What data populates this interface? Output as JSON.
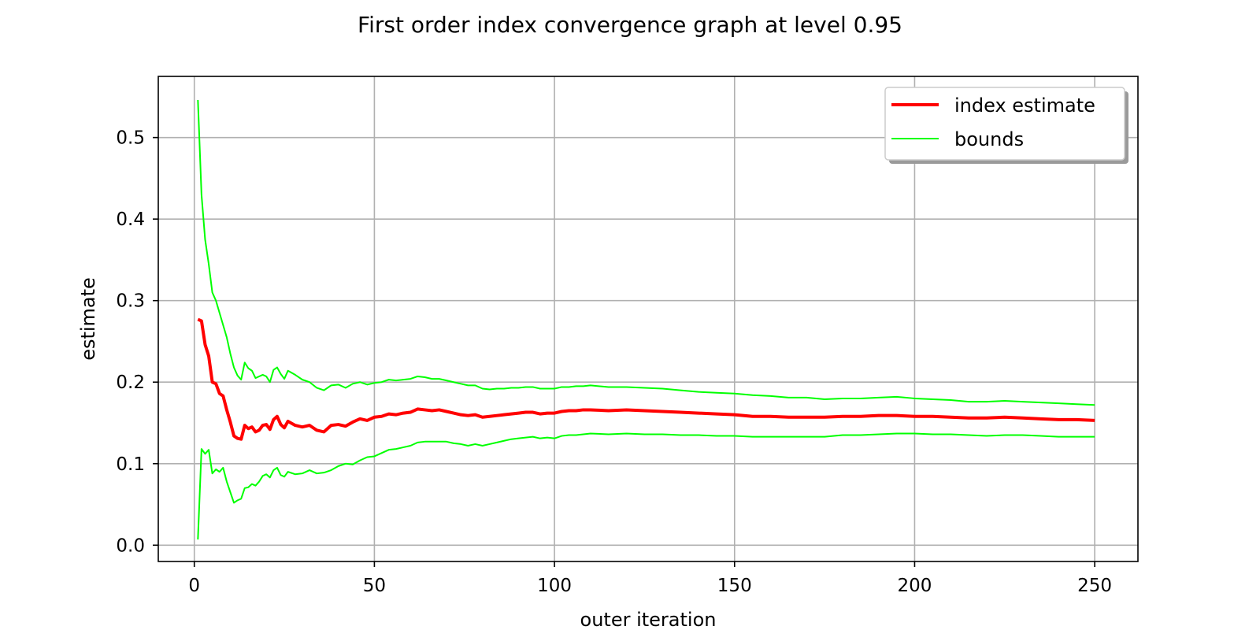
{
  "chart_data": {
    "type": "line",
    "title": "First order index convergence graph at level 0.95",
    "xlabel": "outer iteration",
    "ylabel": "estimate",
    "xlim": [
      -10,
      262
    ],
    "ylim": [
      -0.02,
      0.575
    ],
    "xticks": [
      0,
      50,
      100,
      150,
      200,
      250
    ],
    "yticks": [
      0.0,
      0.1,
      0.2,
      0.3,
      0.4,
      0.5
    ],
    "xtick_labels": [
      "0",
      "50",
      "100",
      "150",
      "200",
      "250"
    ],
    "ytick_labels": [
      "0.0",
      "0.1",
      "0.2",
      "0.3",
      "0.4",
      "0.5"
    ],
    "grid": true,
    "legend_position": "top-right",
    "legend": [
      "index estimate",
      "bounds"
    ],
    "series": [
      {
        "name": "index estimate",
        "color": "#ff0000",
        "x": [
          1,
          2,
          3,
          4,
          5,
          6,
          7,
          8,
          9,
          10,
          11,
          12,
          13,
          14,
          15,
          16,
          17,
          18,
          19,
          20,
          21,
          22,
          23,
          24,
          25,
          26,
          28,
          30,
          32,
          34,
          36,
          38,
          40,
          42,
          44,
          46,
          48,
          50,
          52,
          54,
          56,
          58,
          60,
          62,
          64,
          66,
          68,
          70,
          72,
          74,
          76,
          78,
          80,
          82,
          84,
          86,
          88,
          90,
          92,
          94,
          96,
          98,
          100,
          102,
          104,
          106,
          108,
          110,
          115,
          120,
          125,
          130,
          135,
          140,
          145,
          150,
          155,
          160,
          165,
          170,
          175,
          180,
          185,
          190,
          195,
          200,
          205,
          210,
          215,
          220,
          225,
          230,
          235,
          240,
          245,
          250
        ],
        "y": [
          0.277,
          0.275,
          0.246,
          0.232,
          0.2,
          0.198,
          0.186,
          0.183,
          0.166,
          0.151,
          0.134,
          0.131,
          0.13,
          0.147,
          0.143,
          0.145,
          0.139,
          0.141,
          0.147,
          0.148,
          0.142,
          0.154,
          0.158,
          0.148,
          0.144,
          0.152,
          0.147,
          0.145,
          0.147,
          0.141,
          0.139,
          0.147,
          0.148,
          0.146,
          0.151,
          0.155,
          0.153,
          0.157,
          0.158,
          0.161,
          0.16,
          0.162,
          0.163,
          0.167,
          0.166,
          0.165,
          0.166,
          0.164,
          0.162,
          0.16,
          0.159,
          0.16,
          0.157,
          0.158,
          0.159,
          0.16,
          0.161,
          0.162,
          0.163,
          0.163,
          0.161,
          0.162,
          0.162,
          0.164,
          0.165,
          0.165,
          0.166,
          0.166,
          0.165,
          0.166,
          0.165,
          0.164,
          0.163,
          0.162,
          0.161,
          0.16,
          0.158,
          0.158,
          0.157,
          0.157,
          0.157,
          0.158,
          0.158,
          0.159,
          0.159,
          0.158,
          0.158,
          0.157,
          0.156,
          0.156,
          0.157,
          0.156,
          0.155,
          0.154,
          0.154,
          0.153
        ]
      },
      {
        "name": "bounds",
        "color": "#00ff00",
        "x": [
          1,
          2,
          3,
          4,
          5,
          6,
          7,
          8,
          9,
          10,
          11,
          12,
          13,
          14,
          15,
          16,
          17,
          18,
          19,
          20,
          21,
          22,
          23,
          24,
          25,
          26,
          28,
          30,
          32,
          34,
          36,
          38,
          40,
          42,
          44,
          46,
          48,
          50,
          52,
          54,
          56,
          58,
          60,
          62,
          64,
          66,
          68,
          70,
          72,
          74,
          76,
          78,
          80,
          82,
          84,
          86,
          88,
          90,
          92,
          94,
          96,
          98,
          100,
          102,
          104,
          106,
          108,
          110,
          115,
          120,
          125,
          130,
          135,
          140,
          145,
          150,
          155,
          160,
          165,
          170,
          175,
          180,
          185,
          190,
          195,
          200,
          205,
          210,
          215,
          220,
          225,
          230,
          235,
          240,
          245,
          250
        ],
        "y": [
          0.546,
          0.43,
          0.375,
          0.345,
          0.31,
          0.3,
          0.285,
          0.27,
          0.255,
          0.235,
          0.218,
          0.208,
          0.203,
          0.224,
          0.217,
          0.214,
          0.205,
          0.207,
          0.209,
          0.207,
          0.2,
          0.215,
          0.218,
          0.21,
          0.204,
          0.214,
          0.209,
          0.203,
          0.2,
          0.193,
          0.19,
          0.196,
          0.197,
          0.193,
          0.198,
          0.2,
          0.197,
          0.199,
          0.2,
          0.203,
          0.202,
          0.203,
          0.204,
          0.207,
          0.206,
          0.204,
          0.204,
          0.202,
          0.2,
          0.198,
          0.196,
          0.196,
          0.192,
          0.191,
          0.192,
          0.192,
          0.193,
          0.193,
          0.194,
          0.194,
          0.192,
          0.192,
          0.192,
          0.194,
          0.194,
          0.195,
          0.195,
          0.196,
          0.194,
          0.194,
          0.193,
          0.192,
          0.19,
          0.188,
          0.187,
          0.186,
          0.184,
          0.183,
          0.181,
          0.181,
          0.179,
          0.18,
          0.18,
          0.181,
          0.182,
          0.18,
          0.179,
          0.178,
          0.176,
          0.176,
          0.177,
          0.176,
          0.175,
          0.174,
          0.173,
          0.172
        ]
      },
      {
        "name": "",
        "color": "#00ff00",
        "x": [
          1,
          2,
          3,
          4,
          5,
          6,
          7,
          8,
          9,
          10,
          11,
          12,
          13,
          14,
          15,
          16,
          17,
          18,
          19,
          20,
          21,
          22,
          23,
          24,
          25,
          26,
          28,
          30,
          32,
          34,
          36,
          38,
          40,
          42,
          44,
          46,
          48,
          50,
          52,
          54,
          56,
          58,
          60,
          62,
          64,
          66,
          68,
          70,
          72,
          74,
          76,
          78,
          80,
          82,
          84,
          86,
          88,
          90,
          92,
          94,
          96,
          98,
          100,
          102,
          104,
          106,
          108,
          110,
          115,
          120,
          125,
          130,
          135,
          140,
          145,
          150,
          155,
          160,
          165,
          170,
          175,
          180,
          185,
          190,
          195,
          200,
          205,
          210,
          215,
          220,
          225,
          230,
          235,
          240,
          245,
          250
        ],
        "y": [
          0.007,
          0.118,
          0.112,
          0.117,
          0.088,
          0.093,
          0.09,
          0.095,
          0.078,
          0.065,
          0.052,
          0.055,
          0.057,
          0.07,
          0.071,
          0.075,
          0.073,
          0.078,
          0.085,
          0.087,
          0.083,
          0.092,
          0.095,
          0.086,
          0.084,
          0.09,
          0.087,
          0.088,
          0.092,
          0.088,
          0.089,
          0.092,
          0.097,
          0.1,
          0.099,
          0.104,
          0.108,
          0.109,
          0.113,
          0.117,
          0.118,
          0.12,
          0.122,
          0.126,
          0.127,
          0.127,
          0.127,
          0.127,
          0.125,
          0.124,
          0.122,
          0.124,
          0.122,
          0.124,
          0.126,
          0.128,
          0.13,
          0.131,
          0.132,
          0.133,
          0.131,
          0.132,
          0.131,
          0.134,
          0.135,
          0.135,
          0.136,
          0.137,
          0.136,
          0.137,
          0.136,
          0.136,
          0.135,
          0.135,
          0.134,
          0.134,
          0.133,
          0.133,
          0.133,
          0.133,
          0.133,
          0.135,
          0.135,
          0.136,
          0.137,
          0.137,
          0.136,
          0.136,
          0.135,
          0.134,
          0.135,
          0.135,
          0.134,
          0.133,
          0.133,
          0.133
        ]
      }
    ]
  }
}
